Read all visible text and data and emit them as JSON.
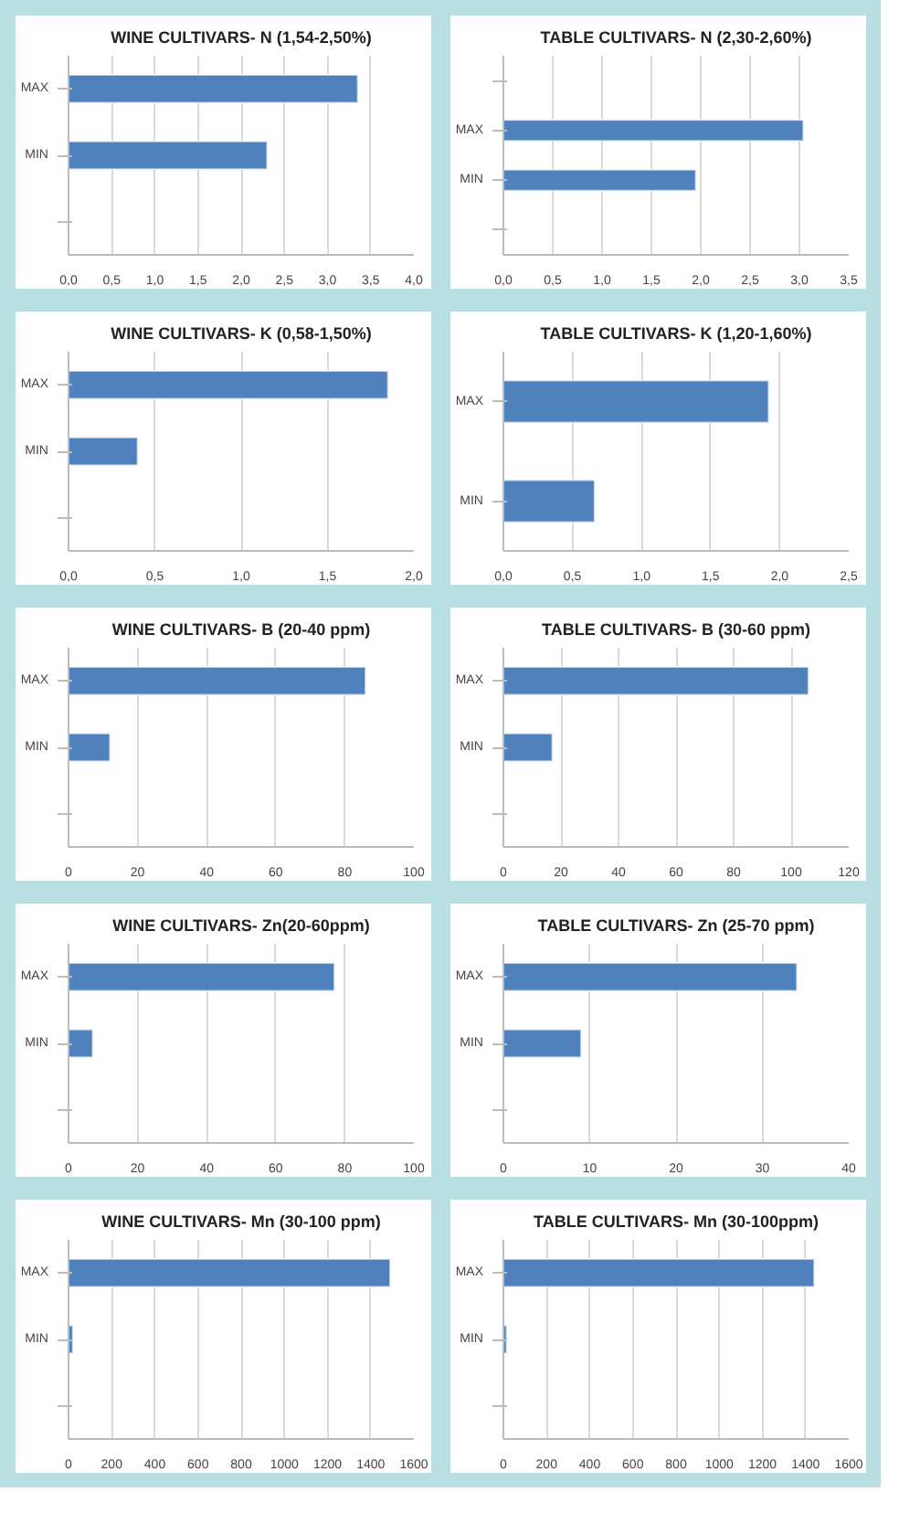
{
  "chart_data": [
    {
      "type": "bar",
      "orientation": "horizontal",
      "title": "WINE CULTIVARS- N (1,54-2,50%)",
      "categories": [
        "MAX",
        "MIN",
        null
      ],
      "values": [
        3.35,
        2.3,
        null
      ],
      "color": "#4f81bd",
      "xlim": [
        0,
        4
      ],
      "xticks": [
        {
          "value": 0,
          "label": "0,0"
        },
        {
          "value": 0.5,
          "label": "0,5"
        },
        {
          "value": 1,
          "label": "1,0"
        },
        {
          "value": 1.5,
          "label": "1,5"
        },
        {
          "value": 2,
          "label": "2,0"
        },
        {
          "value": 2.5,
          "label": "2,5"
        },
        {
          "value": 3,
          "label": "3,0"
        },
        {
          "value": 3.5,
          "label": "3,5"
        },
        {
          "value": 4,
          "label": "4,0"
        }
      ],
      "grid": "x"
    },
    {
      "type": "bar",
      "orientation": "horizontal",
      "title": "TABLE CULTIVARS- N (2,30-2,60%)",
      "categories": [
        null,
        "MAX",
        "MIN",
        null
      ],
      "values": [
        null,
        3.04,
        1.95,
        null
      ],
      "color": "#4f81bd",
      "xlim": [
        0,
        3.5
      ],
      "xticks": [
        {
          "value": 0,
          "label": "0,0"
        },
        {
          "value": 0.5,
          "label": "0,5"
        },
        {
          "value": 1,
          "label": "1,0"
        },
        {
          "value": 1.5,
          "label": "1,5"
        },
        {
          "value": 2,
          "label": "2,0"
        },
        {
          "value": 2.5,
          "label": "2,5"
        },
        {
          "value": 3,
          "label": "3,0"
        },
        {
          "value": 3.5,
          "label": "3,5"
        }
      ],
      "grid": "x"
    },
    {
      "type": "bar",
      "orientation": "horizontal",
      "title": "WINE CULTIVARS- K (0,58-1,50%)",
      "categories": [
        "MAX",
        "MIN",
        null
      ],
      "values": [
        1.85,
        0.4,
        null
      ],
      "color": "#4f81bd",
      "xlim": [
        0,
        2
      ],
      "xticks": [
        {
          "value": 0,
          "label": "0,0"
        },
        {
          "value": 0.5,
          "label": "0,5"
        },
        {
          "value": 1,
          "label": "1,0"
        },
        {
          "value": 1.5,
          "label": "1,5"
        },
        {
          "value": 2,
          "label": "2,0"
        }
      ],
      "grid": "x"
    },
    {
      "type": "bar",
      "orientation": "horizontal",
      "title": "TABLE CULTIVARS- K (1,20-1,60%)",
      "categories": [
        "MAX",
        "MIN"
      ],
      "values": [
        1.92,
        0.66
      ],
      "color": "#4f81bd",
      "xlim": [
        0,
        2.5
      ],
      "xticks": [
        {
          "value": 0,
          "label": "0,0"
        },
        {
          "value": 0.5,
          "label": "0,5"
        },
        {
          "value": 1,
          "label": "1,0"
        },
        {
          "value": 1.5,
          "label": "1,5"
        },
        {
          "value": 2,
          "label": "2,0"
        },
        {
          "value": 2.5,
          "label": "2,5"
        }
      ],
      "grid": "x"
    },
    {
      "type": "bar",
      "orientation": "horizontal",
      "title": "WINE CULTIVARS- B (20-40 ppm)",
      "categories": [
        "MAX",
        "MIN",
        null
      ],
      "values": [
        86,
        12,
        null
      ],
      "color": "#4f81bd",
      "xlim": [
        0,
        100
      ],
      "xticks": [
        0,
        20,
        40,
        60,
        80,
        100
      ],
      "grid": "x"
    },
    {
      "type": "bar",
      "orientation": "horizontal",
      "title": "TABLE CULTIVARS- B (30-60 ppm)",
      "categories": [
        "MAX",
        "MIN",
        null
      ],
      "values": [
        106,
        17,
        null
      ],
      "color": "#4f81bd",
      "xlim": [
        0,
        120
      ],
      "xticks": [
        0,
        20,
        40,
        60,
        80,
        100,
        120
      ],
      "grid": "x"
    },
    {
      "type": "bar",
      "orientation": "horizontal",
      "title": "WINE CULTIVARS- Zn(20-60ppm)",
      "categories": [
        "MAX",
        "MIN",
        null
      ],
      "values": [
        77,
        7,
        null
      ],
      "color": "#4f81bd",
      "xlim": [
        0,
        100
      ],
      "xticks": [
        0,
        20,
        40,
        60,
        80,
        100
      ],
      "grid": "x"
    },
    {
      "type": "bar",
      "orientation": "horizontal",
      "title": "TABLE CULTIVARS- Zn (25-70 ppm)",
      "categories": [
        "MAX",
        "MIN",
        null
      ],
      "values": [
        34,
        9,
        null
      ],
      "color": "#4f81bd",
      "xlim": [
        0,
        40
      ],
      "xticks": [
        0,
        10,
        20,
        30,
        40
      ],
      "grid": "x"
    },
    {
      "type": "bar",
      "orientation": "horizontal",
      "title": "WINE CULTIVARS- Mn (30-100 ppm)",
      "categories": [
        "MAX",
        "MIN",
        null
      ],
      "values": [
        1490,
        20,
        null
      ],
      "color": "#4f81bd",
      "xlim": [
        0,
        1600
      ],
      "xticks": [
        0,
        200,
        400,
        600,
        800,
        1000,
        1200,
        1400,
        1600
      ],
      "grid": "x"
    },
    {
      "type": "bar",
      "orientation": "horizontal",
      "title": "TABLE CULTIVARS- Mn (30-100ppm)",
      "categories": [
        "MAX",
        "MIN",
        null
      ],
      "values": [
        1440,
        15,
        null
      ],
      "color": "#4f81bd",
      "xlim": [
        0,
        1600
      ],
      "xticks": [
        0,
        200,
        400,
        600,
        800,
        1000,
        1200,
        1400,
        1600
      ],
      "grid": "x"
    }
  ]
}
